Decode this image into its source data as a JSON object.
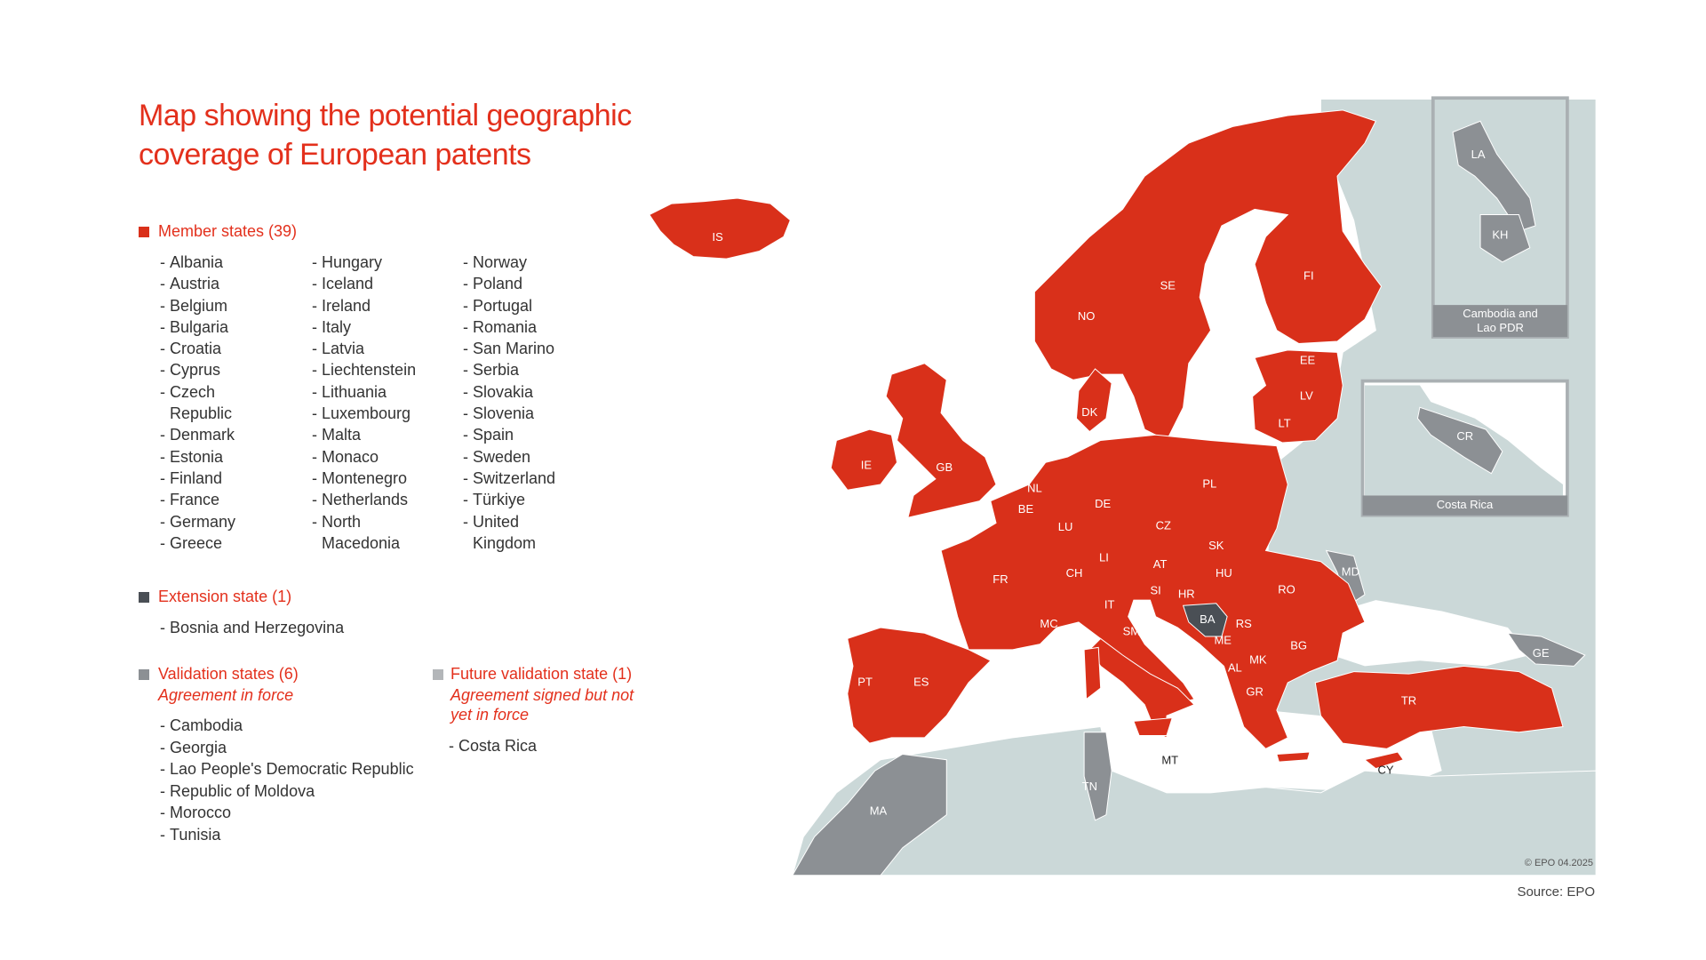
{
  "title": "Map showing the potential geographic coverage of European patents",
  "legend": {
    "member_states": {
      "heading": "Member states (39)",
      "items": [
        "Albania",
        "Austria",
        "Belgium",
        "Bulgaria",
        "Croatia",
        "Cyprus",
        "Czech Republic",
        "Denmark",
        "Estonia",
        "Finland",
        "France",
        "Germany",
        "Greece",
        "Hungary",
        "Iceland",
        "Ireland",
        "Italy",
        "Latvia",
        "Liechtenstein",
        "Lithuania",
        "Luxembourg",
        "Malta",
        "Monaco",
        "Montenegro",
        "Netherlands",
        "North Macedonia",
        "Norway",
        "Poland",
        "Portugal",
        "Romania",
        "San Marino",
        "Serbia",
        "Slovakia",
        "Slovenia",
        "Spain",
        "Sweden",
        "Switzerland",
        "Türkiye",
        "United Kingdom"
      ]
    },
    "extension_state": {
      "heading": "Extension state (1)",
      "items": [
        "Bosnia and Herzegovina"
      ]
    },
    "validation_states": {
      "heading": "Validation states (6)",
      "subheading": "Agreement in force",
      "items": [
        "Cambodia",
        "Georgia",
        "Lao People's Democratic Republic",
        "Republic of Moldova",
        "Morocco",
        "Tunisia"
      ]
    },
    "future_validation_state": {
      "heading": "Future validation state (1)",
      "subheading": "Agreement signed but not yet in force",
      "items": [
        "Costa Rica"
      ]
    }
  },
  "map": {
    "labels": [
      "IS",
      "NO",
      "SE",
      "FI",
      "EE",
      "LV",
      "LT",
      "DK",
      "IE",
      "GB",
      "NL",
      "BE",
      "LU",
      "DE",
      "PL",
      "CZ",
      "SK",
      "FR",
      "CH",
      "LI",
      "AT",
      "HU",
      "RO",
      "MD",
      "SI",
      "HR",
      "BA",
      "RS",
      "IT",
      "SM",
      "MC",
      "ME",
      "BG",
      "MK",
      "AL",
      "GR",
      "GE",
      "TR",
      "PT",
      "ES",
      "MT",
      "CY",
      "TN",
      "MA",
      "LA",
      "KH",
      "CR"
    ],
    "insets": [
      "Cambodia and Lao PDR",
      "Costa Rica"
    ],
    "credit": "© EPO 04.2025"
  },
  "source": "Source: EPO"
}
